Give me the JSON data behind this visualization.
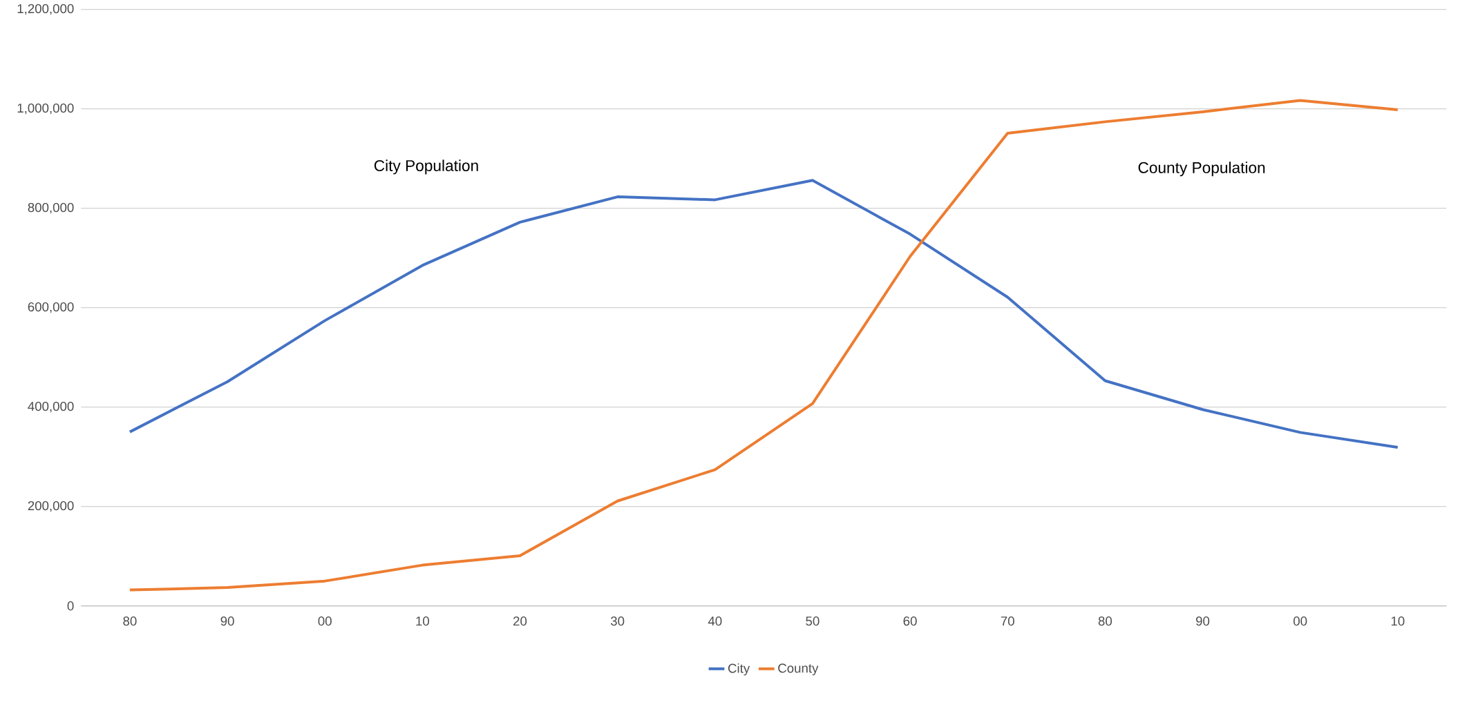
{
  "chart_data": {
    "type": "line",
    "categories": [
      "80",
      "90",
      "00",
      "10",
      "20",
      "30",
      "40",
      "50",
      "60",
      "70",
      "80",
      "90",
      "00",
      "10"
    ],
    "series": [
      {
        "name": "City",
        "color": "#4472c4",
        "values": [
          350000,
          451000,
          574000,
          685000,
          772000,
          823000,
          817000,
          856000,
          748000,
          621000,
          453000,
          395000,
          349000,
          319000
        ]
      },
      {
        "name": "County",
        "color": "#ed7d31",
        "values": [
          32000,
          37000,
          50000,
          82000,
          101000,
          211000,
          274000,
          407000,
          703000,
          951000,
          974000,
          994000,
          1017000,
          998000
        ]
      }
    ],
    "ylim": [
      0,
      1200000
    ],
    "yticks": [
      {
        "value": 0,
        "label": "0"
      },
      {
        "value": 200000,
        "label": "200,000"
      },
      {
        "value": 400000,
        "label": "400,000"
      },
      {
        "value": 600000,
        "label": "600,000"
      },
      {
        "value": 800000,
        "label": "800,000"
      },
      {
        "value": 1000000,
        "label": "1,000,000"
      },
      {
        "value": 1200000,
        "label": "1,200,000"
      }
    ],
    "grid": "y",
    "legend": "bottom",
    "marker": "none",
    "line_style": "solid",
    "annotations": [
      "City Population",
      "County Population"
    ]
  }
}
